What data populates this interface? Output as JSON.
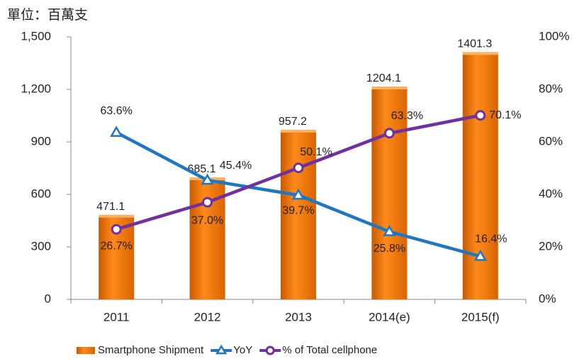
{
  "chart_data": {
    "type": "bar_line",
    "unit_label": "單位：百萬支",
    "categories": [
      "2011",
      "2012",
      "2013",
      "2014(e)",
      "2015(f)"
    ],
    "series": [
      {
        "name": "Smartphone Shipment",
        "type": "bar",
        "color": "#f07800",
        "values": [
          471.1,
          685.1,
          957.2,
          1204.1,
          1401.3
        ]
      },
      {
        "name": "YoY",
        "type": "line",
        "axis": "y2",
        "marker": "triangle",
        "color": "#1f77c4",
        "values": [
          63.6,
          45.4,
          39.7,
          25.8,
          16.4
        ],
        "value_labels": [
          "63.6%",
          "45.4%",
          "39.7%",
          "25.8%",
          "16.4%"
        ]
      },
      {
        "name": "% of Total cellphone",
        "type": "line",
        "axis": "y2",
        "marker": "circle",
        "color": "#7030a0",
        "values": [
          26.7,
          37.0,
          50.1,
          63.3,
          70.1
        ],
        "value_labels": [
          "26.7%",
          "37.0%",
          "50.1%",
          "63.3%",
          "70.1%"
        ]
      }
    ],
    "ylim": [
      0,
      1500
    ],
    "yticks": [
      0,
      300,
      600,
      900,
      {
        "value": 1200,
        "label": "1,200"
      },
      {
        "value": 1500,
        "label": "1,500"
      }
    ],
    "y2lim": [
      0,
      100
    ],
    "y2ticks": [
      {
        "value": 0,
        "label": "0%"
      },
      {
        "value": 20,
        "label": "20%"
      },
      {
        "value": 40,
        "label": "40%"
      },
      {
        "value": 60,
        "label": "60%"
      },
      {
        "value": 80,
        "label": "80%"
      },
      {
        "value": 100,
        "label": "100%"
      }
    ],
    "legend": "bottom"
  }
}
